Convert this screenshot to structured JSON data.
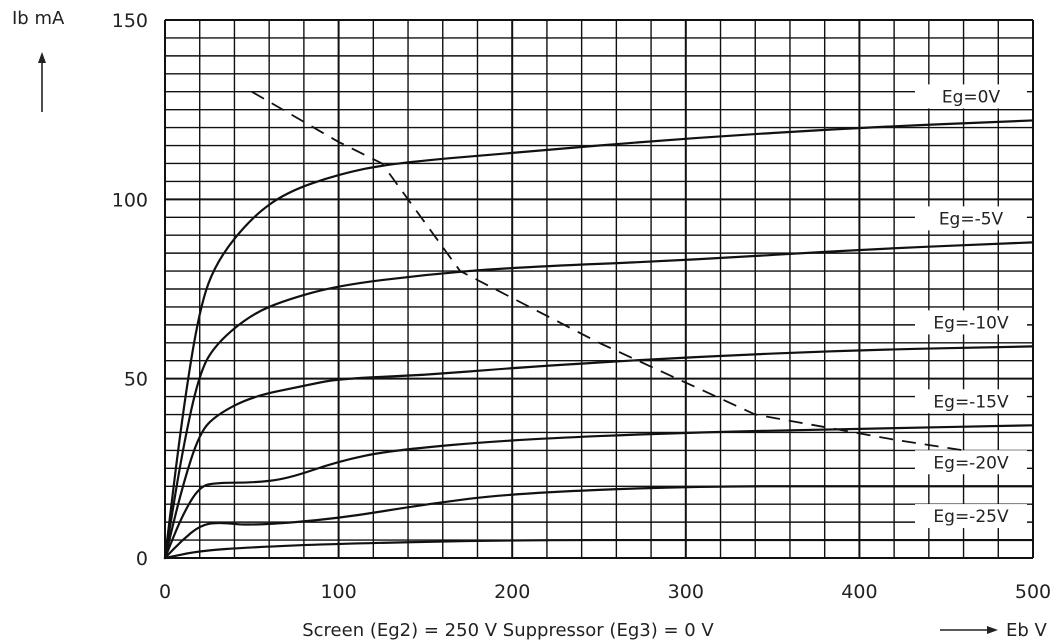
{
  "chart_data": {
    "type": "line",
    "title": "",
    "xlabel": "Screen (Eg2) = 250 V Suppressor (Eg3) = 0 V",
    "ylabel": "Ib mA",
    "x_axis_arrow_label": "Eb V",
    "xlim": [
      0,
      500
    ],
    "ylim": [
      0,
      150
    ],
    "x_ticks": [
      "0",
      "100",
      "200",
      "300",
      "400",
      "500"
    ],
    "y_ticks": [
      "0",
      "50",
      "100",
      "150"
    ],
    "grid": true,
    "series": [
      {
        "name": "Eg=0V",
        "x": [
          0,
          10,
          20,
          30,
          50,
          70,
          100,
          130,
          200,
          300,
          400,
          500
        ],
        "y": [
          0,
          40,
          70,
          83,
          95,
          102,
          107,
          110,
          113,
          117,
          120,
          122
        ]
      },
      {
        "name": "Eg=-5V",
        "x": [
          0,
          10,
          20,
          30,
          50,
          70,
          100,
          150,
          200,
          300,
          400,
          500
        ],
        "y": [
          0,
          30,
          52,
          60,
          68,
          72,
          76,
          79,
          81,
          83,
          86,
          88
        ]
      },
      {
        "name": "Eg=-10V",
        "x": [
          0,
          10,
          20,
          30,
          50,
          80,
          100,
          150,
          200,
          300,
          400,
          500
        ],
        "y": [
          0,
          20,
          35,
          40,
          45,
          48,
          50,
          51,
          53,
          56,
          58,
          59
        ]
      },
      {
        "name": "Eg=-15V",
        "x": [
          0,
          10,
          20,
          30,
          50,
          70,
          100,
          130,
          200,
          300,
          400,
          500
        ],
        "y": [
          0,
          12,
          20,
          21,
          21,
          22,
          27,
          30,
          33,
          35,
          36,
          37
        ]
      },
      {
        "name": "Eg=-20V",
        "x": [
          0,
          10,
          20,
          30,
          50,
          100,
          150,
          200,
          300,
          400,
          500
        ],
        "y": [
          0,
          5,
          9,
          10,
          9,
          11,
          15,
          18,
          20,
          20,
          20
        ]
      },
      {
        "name": "Eg=-25V",
        "x": [
          0,
          20,
          50,
          100,
          200,
          300,
          400,
          500
        ],
        "y": [
          0,
          2,
          3,
          4,
          5,
          5,
          5,
          5
        ]
      }
    ],
    "load_line": {
      "x": [
        50,
        100,
        125,
        170,
        250,
        340,
        420,
        460
      ],
      "y": [
        130,
        116,
        110,
        80,
        60,
        40,
        33,
        30
      ]
    }
  }
}
